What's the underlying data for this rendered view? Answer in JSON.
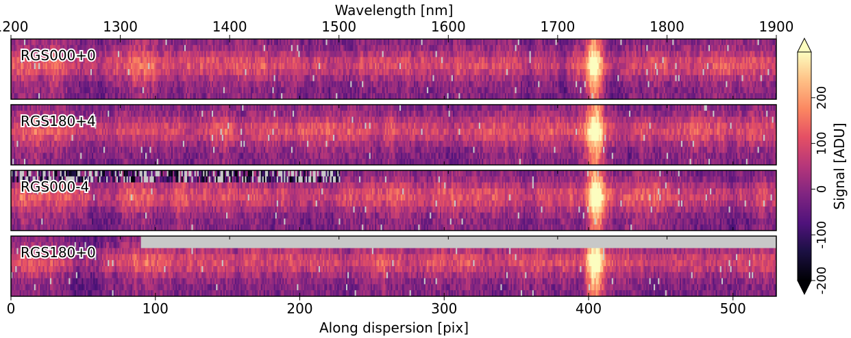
{
  "chart_data": {
    "type": "heatmap",
    "top_axis": {
      "label": "Wavelength [nm]",
      "range": [
        1200,
        1900
      ],
      "ticks": [
        "1200",
        "1300",
        "1400",
        "1500",
        "1600",
        "1700",
        "1800",
        "1900"
      ]
    },
    "bottom_axis": {
      "label": "Along dispersion [pix]",
      "range": [
        0,
        530
      ],
      "ticks": [
        "0",
        "100",
        "200",
        "300",
        "400",
        "500"
      ]
    },
    "colorbar": {
      "label": "Signal [ADU]",
      "range": [
        -200,
        300
      ],
      "ticks": [
        "-200",
        "-100",
        "0",
        "100",
        "200"
      ],
      "colormap": "magma",
      "extend": "both",
      "masked_color": "#c8c8c8"
    },
    "panels": [
      {
        "name": "RGS000+0",
        "rows": 10,
        "bright_band": {
          "center_pix": 404,
          "peak_adu": 300
        },
        "masked_regions": []
      },
      {
        "name": "RGS180+4",
        "rows": 10,
        "bright_band": {
          "center_pix": 404,
          "peak_adu": 280
        },
        "masked_regions": []
      },
      {
        "name": "RGS000-4",
        "rows": 10,
        "bright_band": {
          "center_pix": 404,
          "peak_adu": 290
        },
        "masked_regions": [
          {
            "rows": [
              0,
              1
            ],
            "pix_range": [
              0,
              228
            ],
            "note": "noisy"
          }
        ]
      },
      {
        "name": "RGS180+0",
        "rows": 10,
        "bright_band": {
          "center_pix": 404,
          "peak_adu": 300
        },
        "masked_regions": [
          {
            "rows": [
              0,
              1
            ],
            "pix_range": [
              90,
              530
            ],
            "note": "masked"
          }
        ]
      }
    ]
  }
}
